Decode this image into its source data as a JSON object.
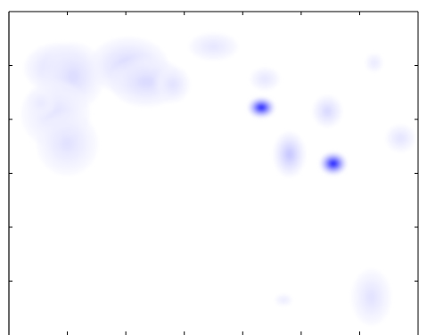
{
  "chart_data": {
    "type": "heatmap",
    "title": "",
    "xlabel": "",
    "ylabel": "",
    "grid": false,
    "legend": "none",
    "colormap": {
      "low": "#ffffff",
      "high": "#0000ff"
    },
    "xlim": [
      0,
      7
    ],
    "ylim": [
      0,
      6
    ],
    "x_ticks": [
      1,
      2,
      3,
      4,
      5,
      6,
      7
    ],
    "y_ticks": [
      1,
      2,
      3,
      4,
      5
    ],
    "blobs": [
      {
        "x": 0.85,
        "y": 4.95,
        "sx": 0.28,
        "sy": 0.22,
        "i": 0.12
      },
      {
        "x": 1.1,
        "y": 4.8,
        "sx": 0.25,
        "sy": 0.3,
        "i": 0.1
      },
      {
        "x": 2.05,
        "y": 5.0,
        "sx": 0.32,
        "sy": 0.25,
        "i": 0.13
      },
      {
        "x": 2.35,
        "y": 4.7,
        "sx": 0.3,
        "sy": 0.22,
        "i": 0.11
      },
      {
        "x": 2.8,
        "y": 4.65,
        "sx": 0.14,
        "sy": 0.16,
        "i": 0.08
      },
      {
        "x": 0.8,
        "y": 4.1,
        "sx": 0.28,
        "sy": 0.3,
        "i": 0.07
      },
      {
        "x": 1.0,
        "y": 3.55,
        "sx": 0.25,
        "sy": 0.28,
        "i": 0.08
      },
      {
        "x": 0.55,
        "y": 4.3,
        "sx": 0.12,
        "sy": 0.12,
        "i": 0.05
      },
      {
        "x": 3.5,
        "y": 5.35,
        "sx": 0.2,
        "sy": 0.12,
        "i": 0.06
      },
      {
        "x": 4.38,
        "y": 4.75,
        "sx": 0.12,
        "sy": 0.1,
        "i": 0.06
      },
      {
        "x": 4.32,
        "y": 4.22,
        "sx": 0.11,
        "sy": 0.09,
        "i": 1.0
      },
      {
        "x": 5.45,
        "y": 4.15,
        "sx": 0.12,
        "sy": 0.14,
        "i": 0.12
      },
      {
        "x": 4.8,
        "y": 3.35,
        "sx": 0.13,
        "sy": 0.2,
        "i": 0.2
      },
      {
        "x": 5.55,
        "y": 3.18,
        "sx": 0.11,
        "sy": 0.1,
        "i": 1.0
      },
      {
        "x": 6.7,
        "y": 3.65,
        "sx": 0.12,
        "sy": 0.12,
        "i": 0.07
      },
      {
        "x": 6.25,
        "y": 5.05,
        "sx": 0.07,
        "sy": 0.08,
        "i": 0.05
      },
      {
        "x": 6.2,
        "y": 0.7,
        "sx": 0.16,
        "sy": 0.25,
        "i": 0.08
      },
      {
        "x": 4.7,
        "y": 0.65,
        "sx": 0.07,
        "sy": 0.05,
        "i": 0.04
      }
    ]
  }
}
